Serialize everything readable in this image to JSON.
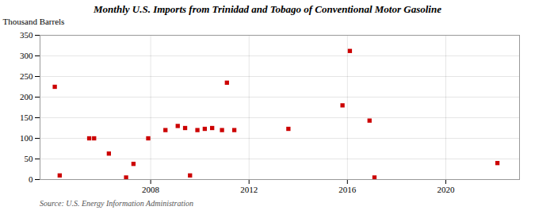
{
  "chart_data": {
    "type": "scatter",
    "title": "Monthly U.S. Imports from Trinidad and Tobago of Conventional Motor Gasoline",
    "ylabel": "Thousand Barrels",
    "annotations": [
      "Source: U.S. Energy Information Administration"
    ],
    "x": [
      2004.1,
      2004.3,
      2005.5,
      2005.7,
      2006.3,
      2007.0,
      2007.3,
      2007.9,
      2008.6,
      2009.1,
      2009.4,
      2009.6,
      2009.9,
      2010.2,
      2010.5,
      2010.9,
      2011.1,
      2011.4,
      2013.6,
      2015.8,
      2016.1,
      2016.9,
      2017.1,
      2022.1
    ],
    "values": [
      225,
      10,
      100,
      100,
      63,
      5,
      38,
      100,
      120,
      130,
      125,
      10,
      120,
      123,
      125,
      120,
      235,
      120,
      123,
      180,
      312,
      143,
      5,
      40
    ],
    "color": "#cc0000",
    "marker": "square",
    "xlim": [
      2003.5,
      2023.0
    ],
    "xticks": [
      2008,
      2012,
      2016,
      2020
    ],
    "ylim": [
      0,
      350
    ],
    "yticks": [
      0,
      50,
      100,
      150,
      200,
      250,
      300,
      350
    ],
    "grid": true
  }
}
